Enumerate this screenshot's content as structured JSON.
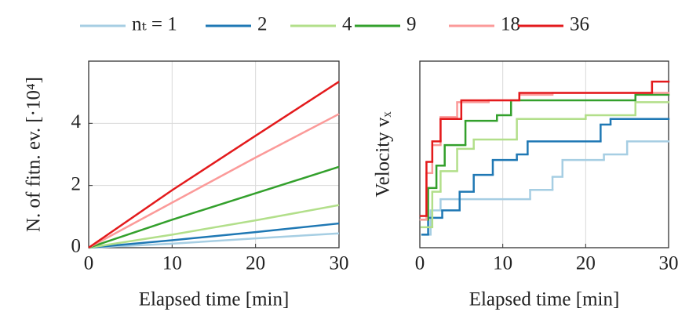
{
  "chart_data": [
    {
      "type": "line",
      "xlabel": "Elapsed time [min]",
      "ylabel": "N. of fitn. ev. [·10⁴]",
      "xlim": [
        0,
        30
      ],
      "ylim": [
        0,
        6
      ],
      "xticks": [
        0,
        10,
        20,
        30
      ],
      "yticks": [
        0,
        2,
        4
      ],
      "grid": true,
      "x": [
        0,
        10,
        20,
        30
      ],
      "series": [
        {
          "name": "nₜ = 1",
          "color": "#a6cee3",
          "values": [
            0,
            0.13,
            0.3,
            0.46
          ]
        },
        {
          "name": "2",
          "color": "#1f78b4",
          "values": [
            0,
            0.24,
            0.5,
            0.78
          ]
        },
        {
          "name": "4",
          "color": "#b2df8a",
          "values": [
            0,
            0.42,
            0.88,
            1.37
          ]
        },
        {
          "name": "9",
          "color": "#33a02c",
          "values": [
            0,
            0.9,
            1.75,
            2.6
          ]
        },
        {
          "name": "18",
          "color": "#fb9a99",
          "values": [
            0,
            1.45,
            2.9,
            4.3
          ]
        },
        {
          "name": "36",
          "color": "#e31a1c",
          "values": [
            0,
            1.85,
            3.6,
            5.34
          ]
        }
      ]
    },
    {
      "type": "step",
      "xlabel": "Elapsed time [min]",
      "ylabel": "Velocity vₓ",
      "xlim": [
        0,
        30
      ],
      "ylim": [
        0,
        1
      ],
      "xticks": [
        0,
        10,
        20,
        30
      ],
      "grid": true,
      "series": [
        {
          "color": "#a6cee3",
          "x": [
            0.3,
            1.3,
            2.5,
            13.3,
            16,
            17.2,
            22.2,
            25
          ],
          "values": [
            0.07,
            0.2,
            0.26,
            0.31,
            0.38,
            0.47,
            0.5,
            0.57
          ]
        },
        {
          "color": "#1f78b4",
          "x": [
            0.3,
            1,
            2.7,
            4.8,
            6.5,
            8.8,
            11.7,
            13,
            21.8,
            23
          ],
          "values": [
            0.07,
            0.16,
            0.2,
            0.3,
            0.39,
            0.47,
            0.5,
            0.57,
            0.66,
            0.69
          ]
        },
        {
          "color": "#b2df8a",
          "x": [
            0.2,
            1.5,
            2.5,
            4.5,
            6.5,
            11.7,
            20,
            26
          ],
          "values": [
            0.11,
            0.3,
            0.41,
            0.53,
            0.58,
            0.69,
            0.71,
            0.78
          ]
        },
        {
          "color": "#33a02c",
          "x": [
            0.2,
            1,
            2,
            3,
            5.5,
            9.3,
            11,
            26
          ],
          "values": [
            0.15,
            0.32,
            0.44,
            0.55,
            0.68,
            0.71,
            0.79,
            0.82
          ]
        },
        {
          "color": "#fb9a99",
          "x": [
            0.1,
            0.8,
            1.5,
            2.5,
            4.5,
            8.3,
            12,
            16
          ],
          "values": [
            0.15,
            0.4,
            0.55,
            0.7,
            0.78,
            0.79,
            0.82,
            0.83
          ]
        },
        {
          "color": "#e31a1c",
          "x": [
            0.1,
            0.8,
            1.5,
            2.5,
            5,
            12,
            28
          ],
          "values": [
            0.17,
            0.46,
            0.57,
            0.69,
            0.79,
            0.83,
            0.89
          ]
        }
      ]
    }
  ]
}
